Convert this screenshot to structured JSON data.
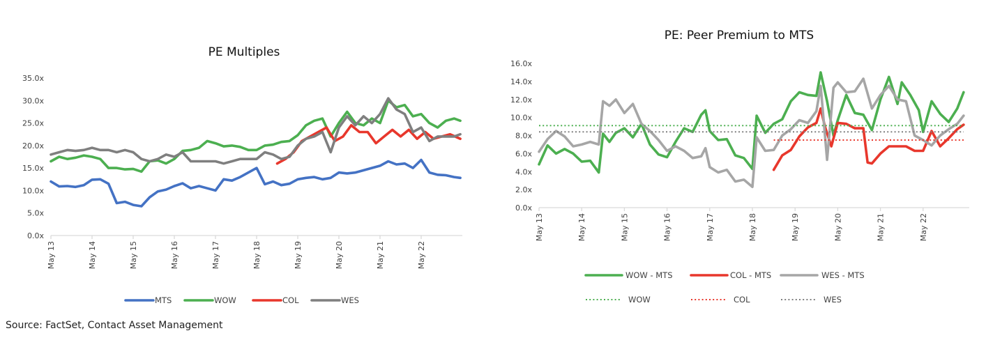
{
  "source": "Source: FactSet, Contact Asset Management",
  "chart_data": [
    {
      "type": "line",
      "title": "PE Multiples",
      "xlabel": "",
      "ylabel": "",
      "ylim": [
        0,
        35
      ],
      "yticks": [
        "0.0x",
        "5.0x",
        "10.0x",
        "15.0x",
        "20.0x",
        "25.0x",
        "30.0x",
        "35.0x"
      ],
      "ytick_values": [
        0,
        5,
        10,
        15,
        20,
        25,
        30,
        35
      ],
      "xticks": [
        "May 13",
        "May 14",
        "May 15",
        "May 16",
        "May 17",
        "May 18",
        "May 19",
        "May 20",
        "May 21",
        "May 22"
      ],
      "xlim": [
        2013.0,
        2023.0
      ],
      "legend": "bottom",
      "series": [
        {
          "name": "MTS",
          "color": "#4472C4",
          "x": [
            2013.0,
            2013.2,
            2013.4,
            2013.6,
            2013.8,
            2014.0,
            2014.2,
            2014.4,
            2014.6,
            2014.8,
            2015.0,
            2015.2,
            2015.4,
            2015.6,
            2015.8,
            2016.0,
            2016.2,
            2016.4,
            2016.6,
            2016.8,
            2017.0,
            2017.2,
            2017.4,
            2017.6,
            2017.8,
            2018.0,
            2018.2,
            2018.4,
            2018.6,
            2018.8,
            2019.0,
            2019.2,
            2019.4,
            2019.6,
            2019.8,
            2020.0,
            2020.2,
            2020.4,
            2020.6,
            2020.8,
            2021.0,
            2021.2,
            2021.4,
            2021.6,
            2021.8,
            2022.0,
            2022.2,
            2022.4,
            2022.6,
            2022.8,
            2022.95
          ],
          "values": [
            12,
            10.9,
            11,
            10.8,
            11.2,
            12.4,
            12.5,
            11.5,
            7.2,
            7.5,
            6.8,
            6.5,
            8.5,
            9.8,
            10.2,
            11,
            11.6,
            10.5,
            11,
            10.5,
            10,
            12.5,
            12.2,
            13,
            14,
            15,
            11.4,
            12,
            11.2,
            11.5,
            12.5,
            12.8,
            13,
            12.5,
            12.8,
            14,
            13.8,
            14,
            14.5,
            15,
            15.5,
            16.5,
            15.8,
            16,
            15,
            16.8,
            14,
            13.5,
            13.4,
            13,
            12.8
          ]
        },
        {
          "name": "WOW",
          "color": "#4CAF50",
          "x": [
            2013.0,
            2013.2,
            2013.4,
            2013.6,
            2013.8,
            2014.0,
            2014.2,
            2014.4,
            2014.6,
            2014.8,
            2015.0,
            2015.2,
            2015.4,
            2015.6,
            2015.8,
            2016.0,
            2016.2,
            2016.4,
            2016.6,
            2016.8,
            2017.0,
            2017.2,
            2017.4,
            2017.6,
            2017.8,
            2018.0,
            2018.2,
            2018.4,
            2018.6,
            2018.8,
            2019.0,
            2019.2,
            2019.4,
            2019.6,
            2019.8,
            2020.0,
            2020.2,
            2020.4,
            2020.6,
            2020.8,
            2021.0,
            2021.2,
            2021.4,
            2021.6,
            2021.8,
            2022.0,
            2022.2,
            2022.4,
            2022.6,
            2022.8,
            2022.95
          ],
          "values": [
            16.5,
            17.5,
            17,
            17.3,
            17.8,
            17.5,
            17,
            15,
            15,
            14.7,
            14.8,
            14.2,
            16.5,
            16.7,
            16,
            17,
            18.8,
            19,
            19.5,
            21,
            20.5,
            19.8,
            20,
            19.7,
            19,
            19,
            20,
            20.2,
            20.8,
            21,
            22.3,
            24.5,
            25.5,
            26,
            22,
            25,
            27.5,
            25,
            24.5,
            26,
            25,
            30,
            28.5,
            29,
            26.5,
            27,
            25,
            24,
            25.5,
            26,
            25.5
          ]
        },
        {
          "name": "COL",
          "color": "#E8372C",
          "x": [
            2018.5,
            2018.7,
            2018.9,
            2019.1,
            2019.3,
            2019.5,
            2019.7,
            2019.9,
            2020.1,
            2020.3,
            2020.5,
            2020.7,
            2020.9,
            2021.1,
            2021.3,
            2021.5,
            2021.7,
            2021.9,
            2022.1,
            2022.3,
            2022.5,
            2022.7,
            2022.95
          ],
          "values": [
            16,
            17,
            18.5,
            21,
            22,
            23,
            24,
            21,
            22,
            24.5,
            23,
            23,
            20.5,
            22,
            23.5,
            22,
            23.5,
            21.5,
            23,
            21.5,
            22,
            22.5,
            21.5
          ]
        },
        {
          "name": "WES",
          "color": "#7F7F7F",
          "x": [
            2013.0,
            2013.2,
            2013.4,
            2013.6,
            2013.8,
            2014.0,
            2014.2,
            2014.4,
            2014.6,
            2014.8,
            2015.0,
            2015.2,
            2015.4,
            2015.6,
            2015.8,
            2016.0,
            2016.2,
            2016.4,
            2016.6,
            2016.8,
            2017.0,
            2017.2,
            2017.4,
            2017.6,
            2017.8,
            2018.0,
            2018.2,
            2018.4,
            2018.6,
            2018.8,
            2019.0,
            2019.2,
            2019.4,
            2019.6,
            2019.8,
            2020.0,
            2020.2,
            2020.4,
            2020.6,
            2020.8,
            2021.0,
            2021.2,
            2021.4,
            2021.6,
            2021.8,
            2022.0,
            2022.2,
            2022.4,
            2022.6,
            2022.8,
            2022.95
          ],
          "values": [
            18,
            18.5,
            19,
            18.8,
            19,
            19.5,
            19,
            19,
            18.5,
            19,
            18.5,
            17,
            16.5,
            17,
            18,
            17.5,
            18.5,
            16.5,
            16.5,
            16.5,
            16.5,
            16,
            16.5,
            17,
            17,
            17,
            18.5,
            18,
            17,
            17.5,
            20,
            21.5,
            22,
            23,
            18.5,
            24,
            26.5,
            24.5,
            26.5,
            25,
            27,
            30.5,
            28,
            27,
            23,
            24,
            21,
            22,
            22,
            22,
            22.5
          ]
        }
      ]
    },
    {
      "type": "line",
      "title": "PE: Peer Premium to MTS",
      "xlabel": "",
      "ylabel": "",
      "ylim": [
        0,
        16
      ],
      "yticks": [
        "0.0x",
        "2.0x",
        "4.0x",
        "6.0x",
        "8.0x",
        "10.0x",
        "12.0x",
        "14.0x",
        "16.0x"
      ],
      "ytick_values": [
        0,
        2,
        4,
        6,
        8,
        10,
        12,
        14,
        16
      ],
      "xticks": [
        "May 13",
        "May 14",
        "May 15",
        "May 16",
        "May 17",
        "May 18",
        "May 19",
        "May 20",
        "May 21",
        "May 22"
      ],
      "xlim": [
        2013.0,
        2023.0
      ],
      "legend": "bottom",
      "series": [
        {
          "name": "WOW - MTS",
          "color": "#4CAF50",
          "style": "solid",
          "x": [
            2013.0,
            2013.2,
            2013.4,
            2013.6,
            2013.8,
            2014.0,
            2014.2,
            2014.4,
            2014.5,
            2014.65,
            2014.8,
            2015.0,
            2015.2,
            2015.4,
            2015.6,
            2015.8,
            2016.0,
            2016.2,
            2016.4,
            2016.6,
            2016.8,
            2016.9,
            2017.0,
            2017.2,
            2017.4,
            2017.6,
            2017.8,
            2018.0,
            2018.1,
            2018.3,
            2018.5,
            2018.7,
            2018.9,
            2019.1,
            2019.3,
            2019.5,
            2019.6,
            2019.75,
            2019.9,
            2020.0,
            2020.2,
            2020.4,
            2020.6,
            2020.8,
            2021.0,
            2021.2,
            2021.4,
            2021.5,
            2021.7,
            2021.9,
            2022.0,
            2022.2,
            2022.4,
            2022.6,
            2022.8,
            2022.95
          ],
          "values": [
            4.8,
            6.9,
            6,
            6.5,
            6,
            5.1,
            5.2,
            3.9,
            8.2,
            7.3,
            8.3,
            8.8,
            7.8,
            9.3,
            7,
            5.9,
            5.6,
            7.3,
            8.8,
            8.4,
            10.3,
            10.8,
            8.5,
            7.5,
            7.6,
            5.8,
            5.5,
            4.3,
            10.2,
            8.3,
            9.3,
            9.8,
            11.8,
            12.8,
            12.5,
            12.4,
            15,
            11.8,
            8,
            9.7,
            12.5,
            10.5,
            10.3,
            8.6,
            12,
            14.5,
            11.5,
            13.9,
            12.5,
            10.8,
            8.4,
            11.8,
            10.4,
            9.5,
            11,
            12.8
          ]
        },
        {
          "name": "COL - MTS",
          "color": "#E8372C",
          "style": "solid",
          "x": [
            2018.5,
            2018.7,
            2018.9,
            2019.1,
            2019.3,
            2019.5,
            2019.6,
            2019.7,
            2019.85,
            2020.0,
            2020.2,
            2020.4,
            2020.6,
            2020.7,
            2020.8,
            2021.0,
            2021.2,
            2021.4,
            2021.6,
            2021.8,
            2022.0,
            2022.2,
            2022.4,
            2022.6,
            2022.8,
            2022.95
          ],
          "values": [
            4.2,
            5.8,
            6.4,
            7.9,
            8.9,
            9.4,
            11,
            9,
            6.8,
            9.4,
            9.3,
            8.8,
            8.8,
            5,
            4.9,
            6,
            6.8,
            6.8,
            6.8,
            6.3,
            6.3,
            8.5,
            6.8,
            7.7,
            8.7,
            9.2
          ]
        },
        {
          "name": "WES - MTS",
          "color": "#A6A6A6",
          "style": "solid",
          "x": [
            2013.0,
            2013.2,
            2013.4,
            2013.6,
            2013.8,
            2014.0,
            2014.2,
            2014.4,
            2014.5,
            2014.65,
            2014.8,
            2015.0,
            2015.2,
            2015.4,
            2015.6,
            2015.8,
            2016.0,
            2016.2,
            2016.4,
            2016.6,
            2016.8,
            2016.9,
            2017.0,
            2017.2,
            2017.4,
            2017.6,
            2017.8,
            2018.0,
            2018.1,
            2018.3,
            2018.5,
            2018.7,
            2018.9,
            2019.1,
            2019.3,
            2019.5,
            2019.6,
            2019.75,
            2019.9,
            2020.0,
            2020.2,
            2020.4,
            2020.6,
            2020.8,
            2021.0,
            2021.2,
            2021.4,
            2021.6,
            2021.8,
            2022.0,
            2022.2,
            2022.4,
            2022.6,
            2022.8,
            2022.95
          ],
          "values": [
            6.2,
            7.6,
            8.5,
            7.9,
            6.8,
            7,
            7.3,
            7,
            11.8,
            11.3,
            12,
            10.5,
            11.5,
            9.3,
            8.5,
            7.5,
            6.3,
            6.8,
            6.3,
            5.5,
            5.7,
            6.6,
            4.5,
            3.9,
            4.2,
            2.9,
            3.1,
            2.3,
            7.8,
            6.3,
            6.4,
            8,
            8.7,
            9.7,
            9.4,
            10.7,
            13.5,
            5.3,
            13.3,
            13.9,
            12.8,
            12.9,
            14.3,
            11,
            12.5,
            13.5,
            12,
            11.8,
            8,
            7.5,
            6.9,
            8,
            8.7,
            9.3,
            10.2
          ]
        },
        {
          "name": "WOW",
          "color": "#4CAF50",
          "style": "dotted",
          "x": [
            2013.0,
            2022.95
          ],
          "values": [
            9.1,
            9.1
          ]
        },
        {
          "name": "COL",
          "color": "#E8372C",
          "style": "dotted",
          "x": [
            2018.5,
            2022.95
          ],
          "values": [
            7.5,
            7.5
          ]
        },
        {
          "name": "WES",
          "color": "#7F7F7F",
          "style": "dotted",
          "x": [
            2013.0,
            2022.95
          ],
          "values": [
            8.4,
            8.4
          ]
        }
      ]
    }
  ]
}
